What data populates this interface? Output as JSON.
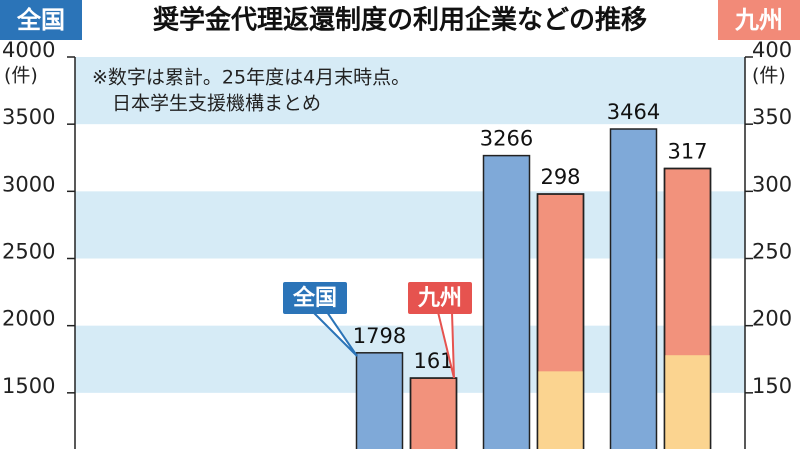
{
  "chart_data": {
    "type": "bar",
    "title": "奨学金代理返還制度の利用企業などの推移",
    "left_tag": "全国",
    "right_tag": "九州",
    "notes": [
      "※数字は累計。25年度は4月末時点。",
      "日本学生支援機構まとめ"
    ],
    "y_label": "(件)",
    "y2_label": "(件)",
    "categories": [
      null,
      null,
      null
    ],
    "series": [
      {
        "name": "全国",
        "color": "#7fa9d8",
        "values": [
          1798,
          3266,
          3464
        ]
      },
      {
        "name": "九州",
        "color": "#f2927c",
        "axis": "y2",
        "values": [
          161,
          298,
          317
        ]
      },
      {
        "color": "#fbd490",
        "axis": "y2",
        "values": [
          null,
          166,
          178
        ]
      }
    ],
    "ylim": [
      1000,
      4000
    ],
    "yticks": [
      1500,
      2000,
      2500,
      3000,
      3500,
      4000
    ],
    "y2lim": [
      100,
      400
    ],
    "y2ticks": [
      150,
      200,
      250,
      300,
      350,
      400
    ],
    "grid": "bands",
    "band_color": "#d6ebf6",
    "annotations": [
      {
        "text": "全国",
        "color": "#2b74b8"
      },
      {
        "text": "九州",
        "color": "#e6534f"
      }
    ]
  }
}
